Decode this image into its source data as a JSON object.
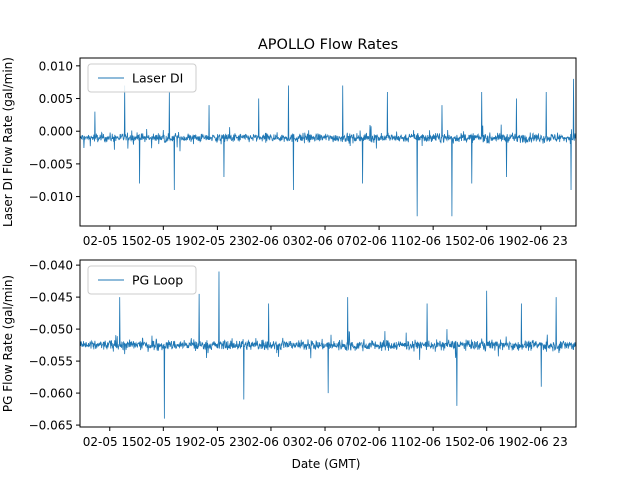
{
  "title": "APOLLO Flow Rates",
  "xlabel": "Date (GMT)",
  "colors": {
    "series": "#1f77b4",
    "axis": "#000000",
    "legend_border": "#cccccc"
  },
  "chart_data": [
    {
      "type": "line",
      "title": "APOLLO Flow Rates",
      "ylabel": "Laser DI Flow Rate (gal/min)",
      "legend": "Laser DI",
      "legend_position": "top-left",
      "ylim": [
        -0.0145,
        0.0112
      ],
      "yticks": [
        0.01,
        0.005,
        0.0,
        -0.005,
        -0.01
      ],
      "ytick_labels": [
        "0.010",
        "0.005",
        "0.000",
        "−0.005",
        "−0.010"
      ],
      "baseline": -0.001,
      "noise": 0.0012,
      "spikes_up": [
        [
          0.03,
          0.003
        ],
        [
          0.09,
          0.007
        ],
        [
          0.18,
          0.006
        ],
        [
          0.26,
          0.004
        ],
        [
          0.36,
          0.005
        ],
        [
          0.42,
          0.007
        ],
        [
          0.53,
          0.007
        ],
        [
          0.62,
          0.006
        ],
        [
          0.73,
          0.004
        ],
        [
          0.81,
          0.006
        ],
        [
          0.88,
          0.005
        ],
        [
          0.94,
          0.006
        ],
        [
          0.995,
          0.008
        ]
      ],
      "spikes_down": [
        [
          0.12,
          -0.008
        ],
        [
          0.19,
          -0.009
        ],
        [
          0.29,
          -0.007
        ],
        [
          0.43,
          -0.009
        ],
        [
          0.57,
          -0.008
        ],
        [
          0.68,
          -0.007
        ],
        [
          0.68,
          -0.013
        ],
        [
          0.75,
          -0.013
        ],
        [
          0.79,
          -0.008
        ],
        [
          0.86,
          -0.007
        ],
        [
          0.99,
          -0.009
        ]
      ]
    },
    {
      "type": "line",
      "ylabel": "PG Flow Rate (gal/min)",
      "legend": "PG Loop",
      "legend_position": "top-left",
      "ylim": [
        -0.0653,
        -0.0392
      ],
      "yticks": [
        -0.04,
        -0.045,
        -0.05,
        -0.055,
        -0.06,
        -0.065
      ],
      "ytick_labels": [
        "−0.040",
        "−0.045",
        "−0.050",
        "−0.055",
        "−0.060",
        "−0.065"
      ],
      "baseline": -0.0525,
      "noise": 0.0014,
      "spikes_up": [
        [
          0.08,
          -0.045
        ],
        [
          0.24,
          -0.0445
        ],
        [
          0.28,
          -0.041
        ],
        [
          0.38,
          -0.046
        ],
        [
          0.54,
          -0.045
        ],
        [
          0.7,
          -0.046
        ],
        [
          0.82,
          -0.044
        ],
        [
          0.89,
          -0.046
        ],
        [
          0.96,
          -0.045
        ]
      ],
      "spikes_down": [
        [
          0.17,
          -0.064
        ],
        [
          0.33,
          -0.061
        ],
        [
          0.5,
          -0.06
        ],
        [
          0.76,
          -0.062
        ],
        [
          0.93,
          -0.059
        ]
      ]
    }
  ],
  "xaxis": {
    "range": [
      0.0,
      1.0
    ],
    "ticks": [
      0.06,
      0.168,
      0.277,
      0.385,
      0.494,
      0.603,
      0.712,
      0.82,
      0.929
    ],
    "tick_labels": [
      "02-05 15",
      "02-05 19",
      "02-05 23",
      "02-06 03",
      "02-06 07",
      "02-06 11",
      "02-06 15",
      "02-06 19",
      "02-06 23"
    ]
  }
}
